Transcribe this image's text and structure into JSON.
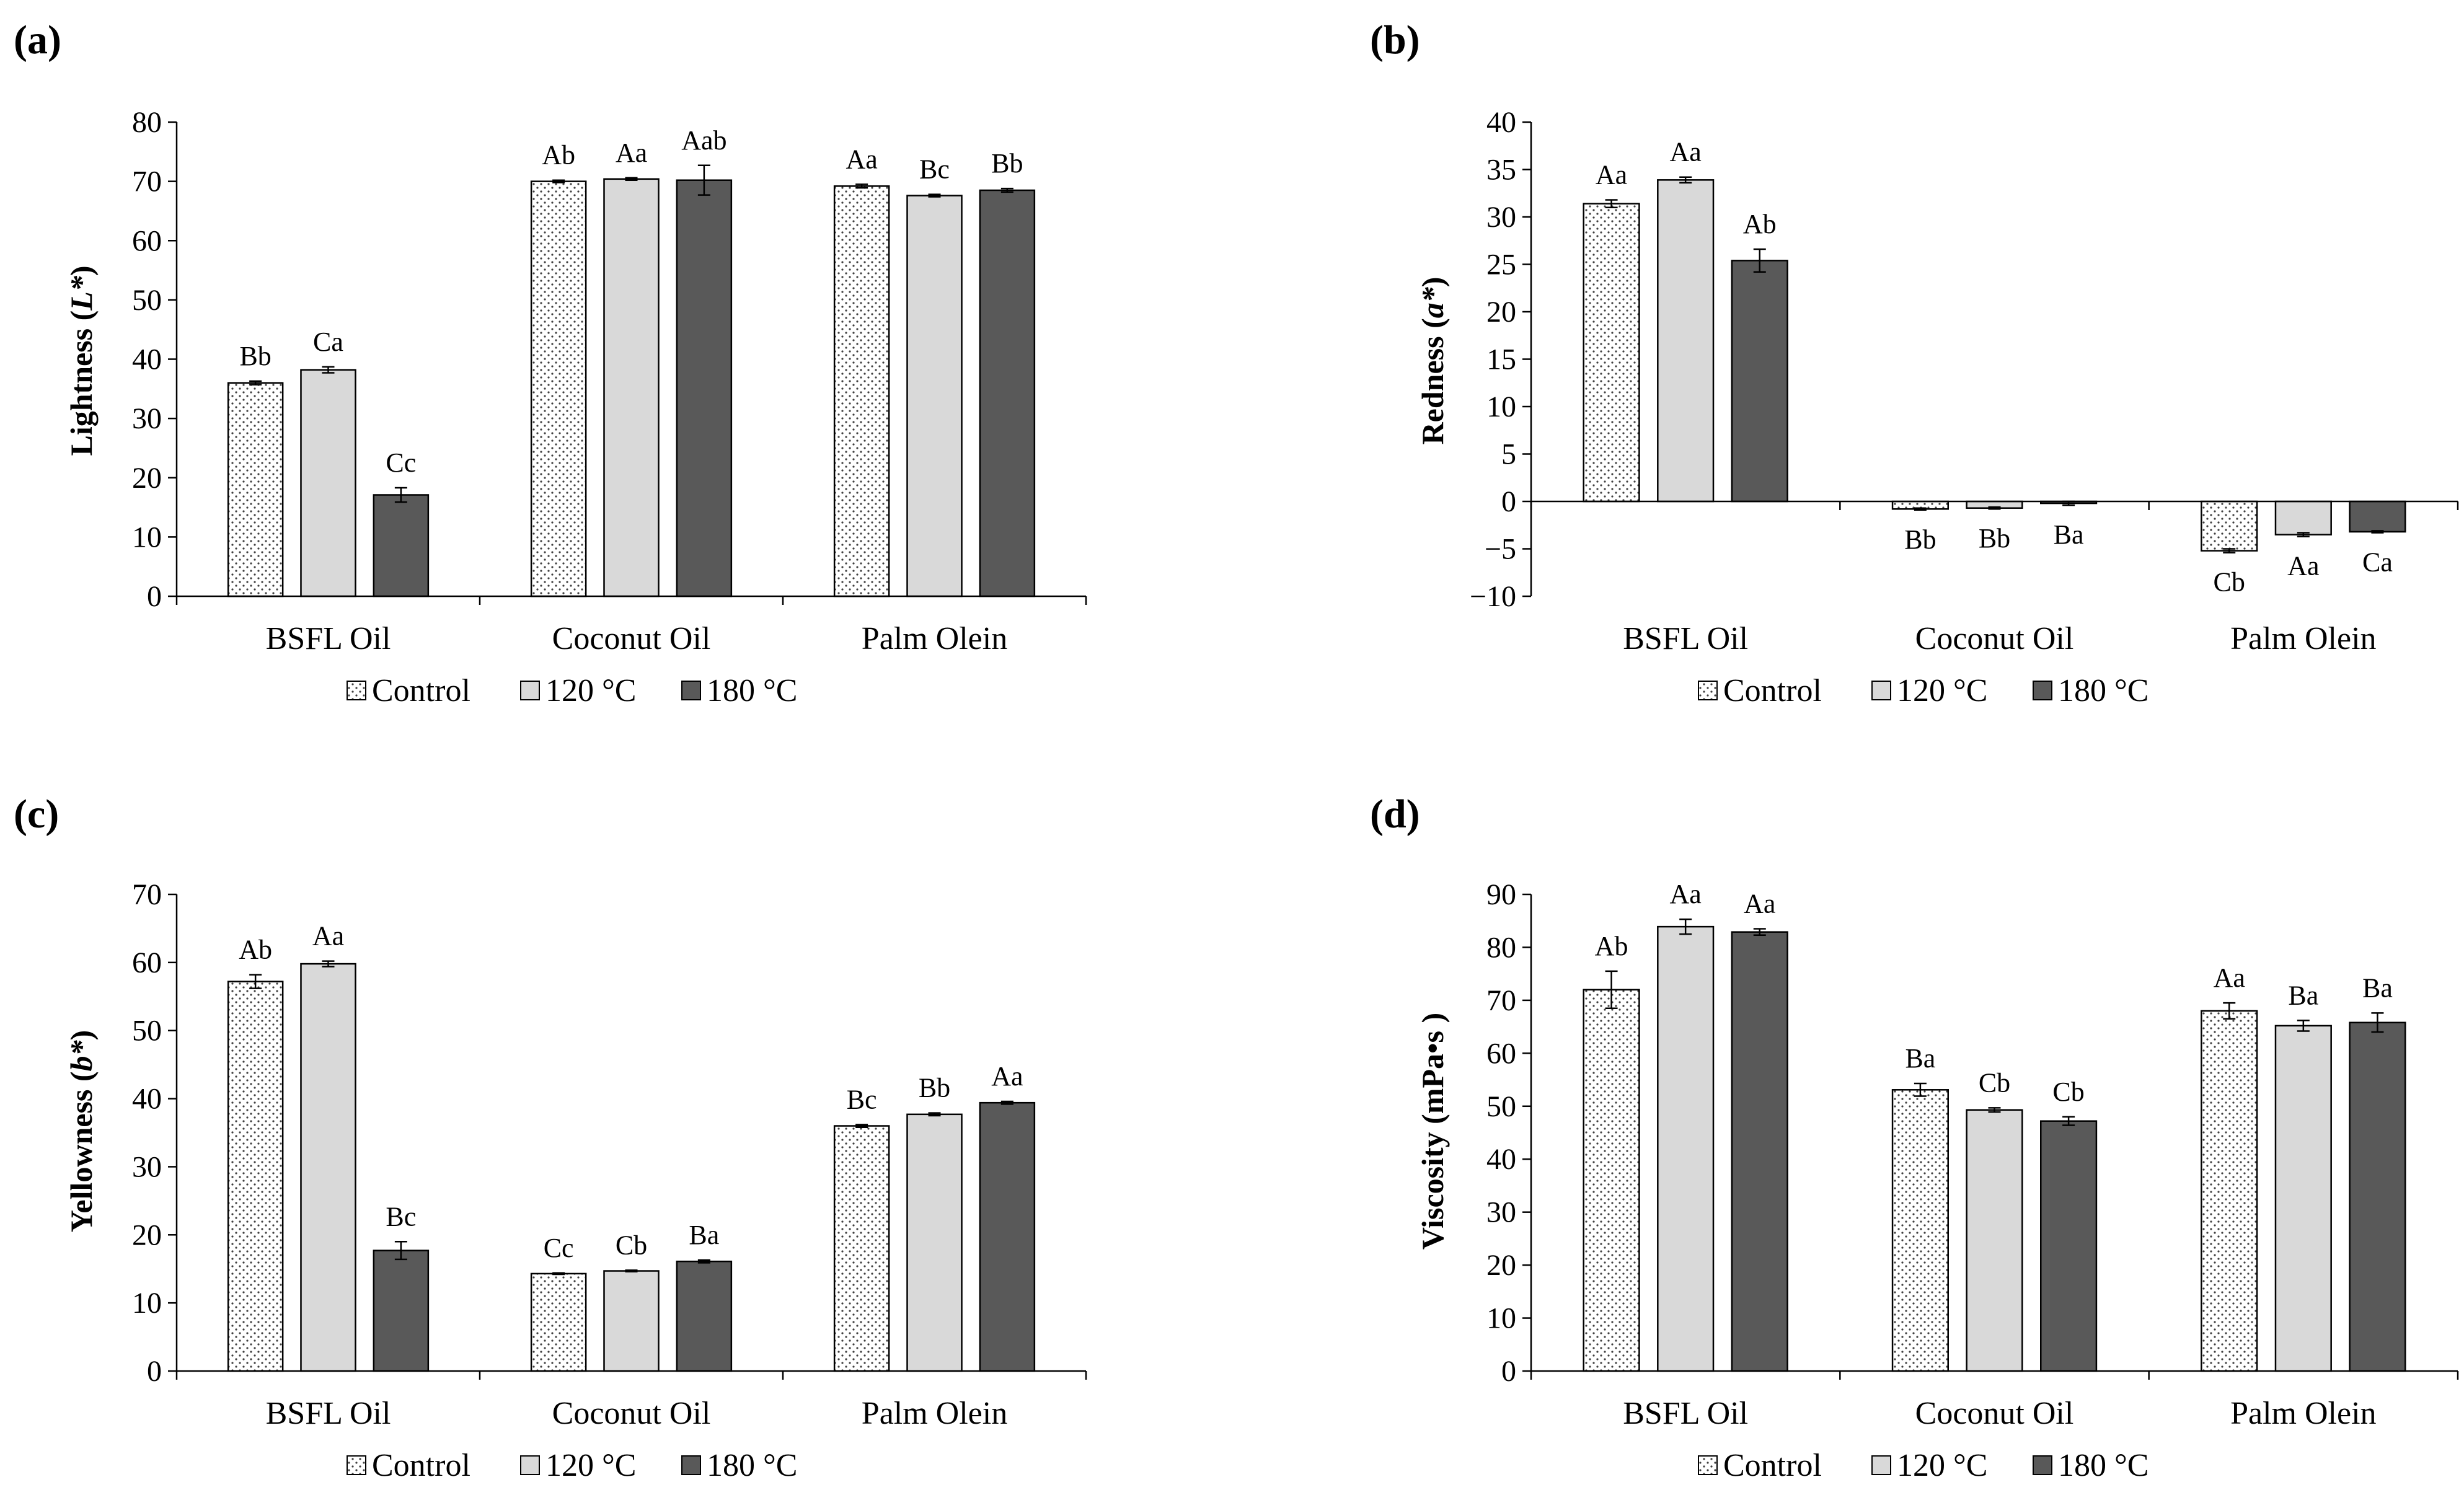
{
  "colors": {
    "control_fill": "#ffffff",
    "c120_fill": "#d9d9d9",
    "c180_fill": "#595959",
    "dot_color": "#404040",
    "axis": "#000000"
  },
  "chart_data": [
    {
      "panel": "(a)",
      "type": "bar",
      "ylabel_main": "Lightness (",
      "ylabel_var": "L*",
      "ylabel_end": ")",
      "categories": [
        "BSFL Oil",
        "Coconut Oil",
        "Palm Olein"
      ],
      "ylim": [
        0,
        80
      ],
      "yticks": [
        0,
        10,
        20,
        30,
        40,
        50,
        60,
        70,
        80
      ],
      "legend": [
        "Control",
        "120 °C",
        "180 °C"
      ],
      "series": [
        {
          "name": "Control",
          "values": [
            36.0,
            70.0,
            69.2
          ],
          "errors": [
            0.3,
            0.2,
            0.3
          ],
          "labels": [
            "Bb",
            "Ab",
            "Aa"
          ]
        },
        {
          "name": "120 °C",
          "values": [
            38.2,
            70.4,
            67.6
          ],
          "errors": [
            0.5,
            0.2,
            0.2
          ],
          "labels": [
            "Ca",
            "Aa",
            "Bc"
          ]
        },
        {
          "name": "180 °C",
          "values": [
            17.1,
            70.2,
            68.5
          ],
          "errors": [
            1.2,
            2.5,
            0.3
          ],
          "labels": [
            "Cc",
            "Aab",
            "Bb"
          ]
        }
      ]
    },
    {
      "panel": "(b)",
      "type": "bar",
      "ylabel_main": "Redness (",
      "ylabel_var": "a*",
      "ylabel_end": ")",
      "categories": [
        "BSFL Oil",
        "Coconut Oil",
        "Palm Olein"
      ],
      "ylim": [
        -10,
        40
      ],
      "yticks": [
        -10,
        -5,
        0,
        5,
        10,
        15,
        20,
        25,
        30,
        35,
        40
      ],
      "legend": [
        "Control",
        "120 °C",
        "180 °C"
      ],
      "series": [
        {
          "name": "Control",
          "values": [
            31.4,
            -0.8,
            -5.2
          ],
          "errors": [
            0.4,
            0.1,
            0.2
          ],
          "labels": [
            "Aa",
            "Bb",
            "Cb"
          ]
        },
        {
          "name": "120 °C",
          "values": [
            33.9,
            -0.7,
            -3.5
          ],
          "errors": [
            0.3,
            0.1,
            0.2
          ],
          "labels": [
            "Aa",
            "Bb",
            "Aa"
          ]
        },
        {
          "name": "180 °C",
          "values": [
            25.4,
            -0.2,
            -3.2
          ],
          "errors": [
            1.2,
            0.2,
            0.1
          ],
          "labels": [
            "Ab",
            "Ba",
            "Ca"
          ]
        }
      ]
    },
    {
      "panel": "(c)",
      "type": "bar",
      "ylabel_main": "Yellowness (",
      "ylabel_var": "b*",
      "ylabel_end": ")",
      "categories": [
        "BSFL Oil",
        "Coconut Oil",
        "Palm Olein"
      ],
      "ylim": [
        0,
        70
      ],
      "yticks": [
        0,
        10,
        20,
        30,
        40,
        50,
        60,
        70
      ],
      "legend": [
        "Control",
        "120 °C",
        "180 °C"
      ],
      "series": [
        {
          "name": "Control",
          "values": [
            57.2,
            14.3,
            36.0
          ],
          "errors": [
            1.0,
            0.1,
            0.2
          ],
          "labels": [
            "Ab",
            "Cc",
            "Bc"
          ]
        },
        {
          "name": "120 °C",
          "values": [
            59.8,
            14.7,
            37.7
          ],
          "errors": [
            0.4,
            0.1,
            0.2
          ],
          "labels": [
            "Aa",
            "Cb",
            "Bb"
          ]
        },
        {
          "name": "180 °C",
          "values": [
            17.7,
            16.1,
            39.4
          ],
          "errors": [
            1.3,
            0.2,
            0.2
          ],
          "labels": [
            "Bc",
            "Ba",
            "Aa"
          ]
        }
      ]
    },
    {
      "panel": "(d)",
      "type": "bar",
      "ylabel_main": "Viscosity (mPa•s )",
      "ylabel_var": "",
      "ylabel_end": "",
      "categories": [
        "BSFL Oil",
        "Coconut Oil",
        "Palm Olein"
      ],
      "ylim": [
        0,
        90
      ],
      "yticks": [
        0,
        10,
        20,
        30,
        40,
        50,
        60,
        70,
        80,
        90
      ],
      "legend": [
        "Control",
        "120 °C",
        "180 °C"
      ],
      "series": [
        {
          "name": "Control",
          "values": [
            72.0,
            53.1,
            68.0
          ],
          "errors": [
            3.5,
            1.2,
            1.5
          ],
          "labels": [
            "Ab",
            "Ba",
            "Aa"
          ]
        },
        {
          "name": "120 °C",
          "values": [
            83.9,
            49.3,
            65.2
          ],
          "errors": [
            1.4,
            0.4,
            1.0
          ],
          "labels": [
            "Aa",
            "Cb",
            "Ba"
          ]
        },
        {
          "name": "180 °C",
          "values": [
            82.9,
            47.2,
            65.8
          ],
          "errors": [
            0.6,
            0.8,
            1.8
          ],
          "labels": [
            "Aa",
            "Cb",
            "Ba"
          ]
        }
      ]
    }
  ]
}
